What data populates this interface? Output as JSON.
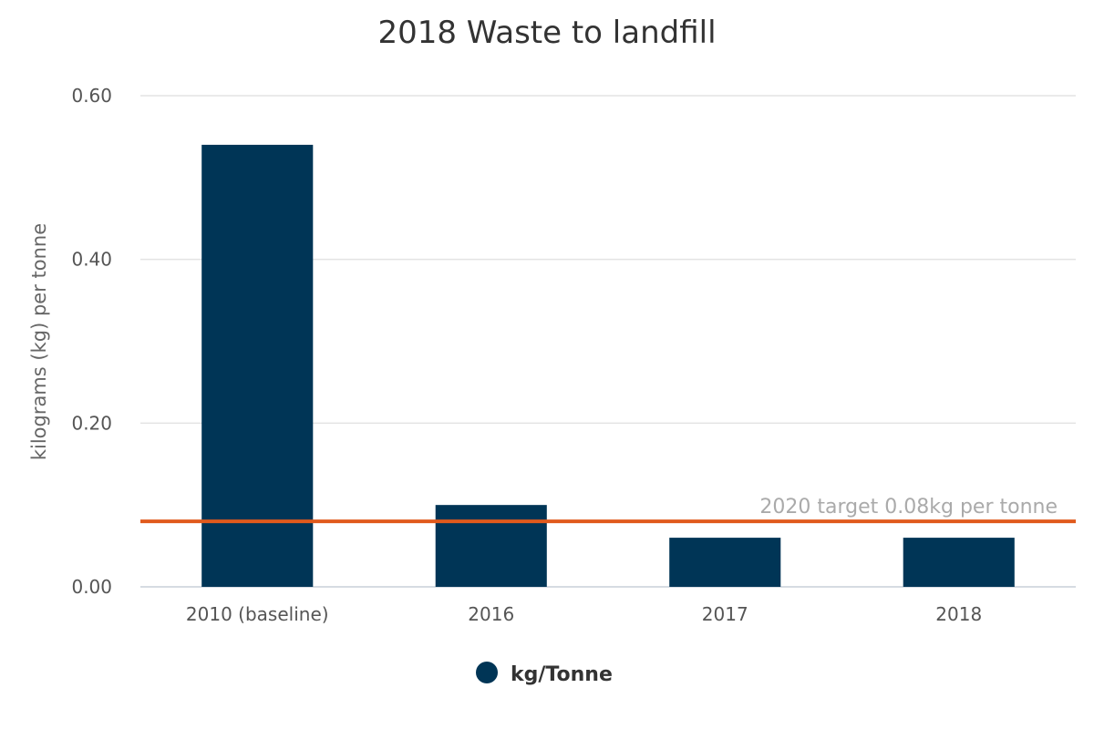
{
  "chart_data": {
    "type": "bar",
    "title": "2018 Waste to landfill",
    "xlabel": "",
    "ylabel": "kilograms (kg) per tonne",
    "categories": [
      "2010 (baseline)",
      "2016",
      "2017",
      "2018"
    ],
    "series": [
      {
        "name": "kg/Tonne",
        "values": [
          0.54,
          0.1,
          0.06,
          0.06
        ],
        "color": "#003556"
      }
    ],
    "ylim": [
      0,
      0.6
    ],
    "yticks": [
      0.0,
      0.2,
      0.4,
      0.6
    ],
    "ytick_labels": [
      "0.00",
      "0.20",
      "0.40",
      "0.60"
    ],
    "grid": true,
    "legend_position": "bottom-center",
    "plot_lines": [
      {
        "value": 0.08,
        "label": "2020 target 0.08kg per tonne",
        "color": "#e05a1c"
      }
    ]
  }
}
